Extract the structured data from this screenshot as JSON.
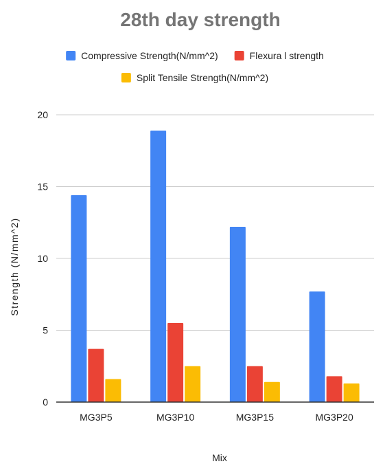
{
  "chart_data": {
    "type": "bar",
    "title": "28th day strength",
    "xlabel": "Mix",
    "ylabel": "Strength (N/mm^2)",
    "categories": [
      "MG3P5",
      "MG3P10",
      "MG3P15",
      "MG3P20"
    ],
    "series": [
      {
        "name": "Compressive Strength(N/mm^2)",
        "color": "#4285F4",
        "values": [
          14.4,
          18.9,
          12.2,
          7.7
        ]
      },
      {
        "name": "Flexura l strength",
        "color": "#EA4335",
        "values": [
          3.7,
          5.5,
          2.5,
          1.8
        ]
      },
      {
        "name": "Split Tensile Strength(N/mm^2)",
        "color": "#FBBC04",
        "values": [
          1.6,
          2.5,
          1.4,
          1.3
        ]
      }
    ],
    "ylim": [
      0,
      20
    ],
    "yticks": [
      "0",
      "5",
      "10",
      "15",
      "20"
    ],
    "grid": true,
    "legend_position": "top"
  }
}
